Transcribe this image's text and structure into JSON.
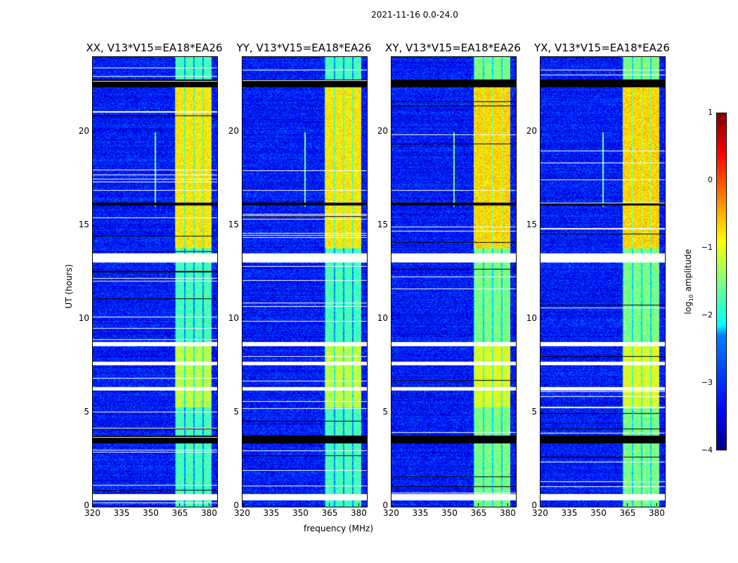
{
  "suptitle": "2021-11-16 0.0-24.0",
  "chart_data": {
    "type": "heatmap",
    "panels": [
      {
        "title": "XX, V13*V15=EA18*EA26"
      },
      {
        "title": "YY, V13*V15=EA18*EA26"
      },
      {
        "title": "XY, V13*V15=EA18*EA26"
      },
      {
        "title": "YX, V13*V15=EA18*EA26"
      }
    ],
    "xlabel": "frequency (MHz)",
    "ylabel": "UT (hours)",
    "xlim": [
      320,
      384
    ],
    "ylim": [
      0,
      24
    ],
    "xticks": [
      "320",
      "335",
      "350",
      "365",
      "380"
    ],
    "xtick_values": [
      320,
      335,
      350,
      365,
      380
    ],
    "yticks": [
      "0",
      "5",
      "10",
      "15",
      "20"
    ],
    "ytick_values": [
      0,
      5,
      10,
      15,
      20
    ],
    "colorbar": {
      "label": "log10 amplitude",
      "label_main": "log",
      "label_sub": "10",
      "label_rest": " amplitude",
      "range": [
        -4,
        1
      ],
      "ticks": [
        "1",
        "0",
        "−1",
        "−2",
        "−3",
        "−4"
      ],
      "tick_values": [
        1,
        0,
        -1,
        -2,
        -3,
        -4
      ],
      "colormap": "jet"
    },
    "background_log_amplitude": -3.3,
    "bright_band_mhz": [
      362,
      381
    ],
    "bright_band_levels": [
      {
        "ut": [
          13.8,
          22.8
        ],
        "log_amplitude": -0.8
      },
      {
        "ut": [
          5.3,
          8.7
        ],
        "log_amplitude": -1.2
      },
      {
        "ut": [
          0,
          24
        ],
        "log_amplitude": -1.8
      }
    ],
    "flagged_ut_white": [
      [
        0.35,
        0.7
      ],
      [
        6.2,
        6.4
      ],
      [
        7.55,
        7.75
      ],
      [
        8.6,
        8.8
      ],
      [
        13.05,
        13.55
      ]
    ],
    "zero_ut_black": [
      [
        3.4,
        3.8
      ],
      [
        22.4,
        22.8
      ],
      [
        16.1,
        16.25
      ]
    ]
  }
}
